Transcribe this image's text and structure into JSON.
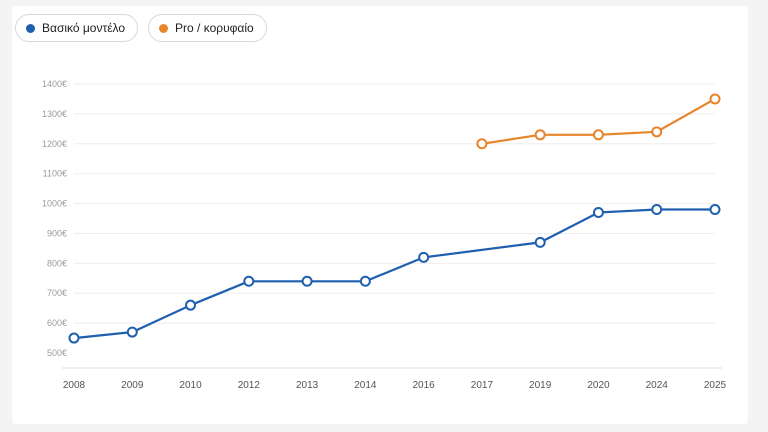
{
  "chart_data": {
    "type": "line",
    "title": "",
    "xlabel": "",
    "ylabel": "",
    "categories": [
      "2008",
      "2009",
      "2010",
      "2012",
      "2013",
      "2014",
      "2016",
      "2017",
      "2019",
      "2020",
      "2024",
      "2025"
    ],
    "y_ticks": [
      500,
      600,
      700,
      800,
      900,
      1000,
      1100,
      1200,
      1300,
      1400
    ],
    "y_tick_labels": [
      "500€",
      "600€",
      "700€",
      "800€",
      "900€",
      "1000€",
      "1100€",
      "1200€",
      "1300€",
      "1400€"
    ],
    "ylim": [
      500,
      1400
    ],
    "grid": true,
    "legend_position": "top-left",
    "series": [
      {
        "name": "Βασικό μοντέλο",
        "color": "#1f5fb0",
        "values": [
          550,
          570,
          660,
          740,
          740,
          740,
          820,
          null,
          870,
          970,
          980,
          980
        ]
      },
      {
        "name": "Pro / κορυφαίο",
        "color": "#e8852b",
        "values": [
          null,
          null,
          null,
          null,
          null,
          null,
          null,
          1200,
          1230,
          1230,
          1240,
          1350
        ]
      }
    ]
  }
}
